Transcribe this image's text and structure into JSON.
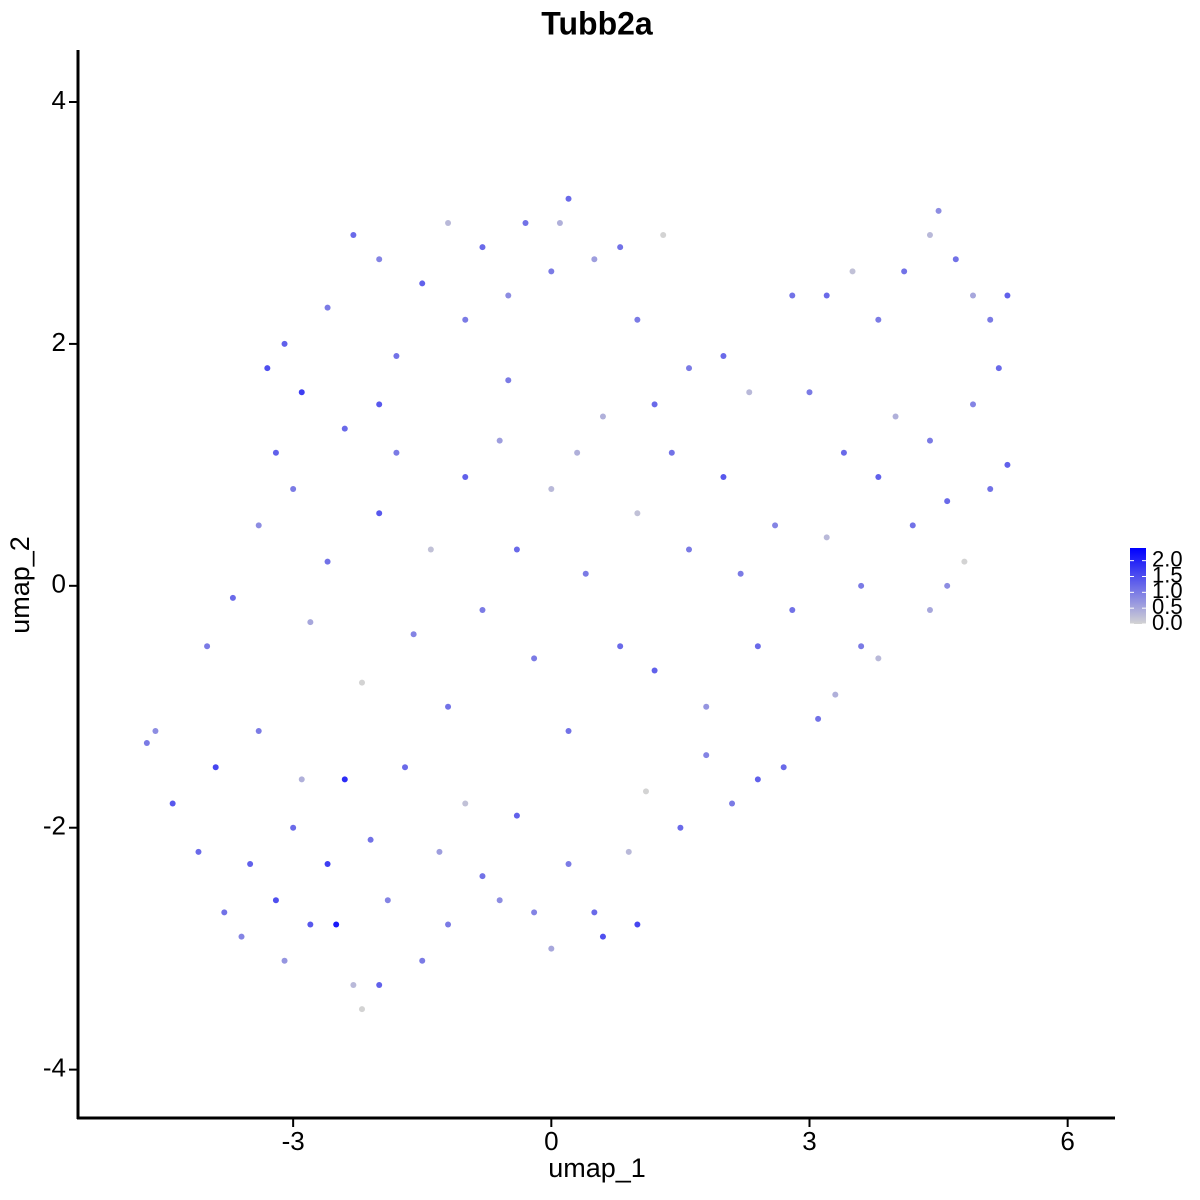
{
  "chart_data": {
    "type": "scatter",
    "title": "Tubb2a",
    "x_label": "umap_1",
    "y_label": "umap_2",
    "xlim": [
      -5.5,
      6.55
    ],
    "ylim": [
      -4.4,
      4.43
    ],
    "xticks": [
      -3,
      0,
      3,
      6
    ],
    "yticks": [
      -4,
      -2,
      0,
      2,
      4
    ],
    "colorbar": {
      "lim": [
        0,
        2.4
      ],
      "colors": [
        "#d3d3d3",
        "#0000ff"
      ],
      "ticks": [
        {
          "value": 0,
          "label": "0.0"
        },
        0.5,
        {
          "value": 1,
          "label": "1.0"
        },
        1.5,
        {
          "value": 2,
          "label": "2.0"
        }
      ]
    },
    "x": [
      -4.7,
      -4.6,
      -4.4,
      -4.1,
      -3.9,
      -3.8,
      -3.6,
      -3.5,
      -3.4,
      -3.2,
      -3.1,
      -3.0,
      -2.9,
      -2.8,
      -2.6,
      -2.5,
      -2.4,
      -2.3,
      -2.2,
      -2.1,
      -2.0,
      -1.9,
      -1.7,
      -1.5,
      -1.3,
      -1.2,
      -1.0,
      -0.8,
      -0.6,
      -0.4,
      -0.2,
      0.0,
      0.2,
      0.5,
      0.6,
      1.0,
      0.9,
      1.1,
      1.5,
      1.8,
      2.1,
      2.4,
      2.7,
      3.1,
      3.3,
      3.6,
      3.8,
      4.4,
      4.6,
      4.8,
      -4.0,
      -3.7,
      -3.4,
      -3.2,
      -3.0,
      -2.8,
      -2.6,
      -2.4,
      -2.2,
      -2.0,
      -1.8,
      -1.6,
      -1.4,
      -1.2,
      -1.0,
      -0.8,
      -0.6,
      -0.4,
      -0.2,
      0.0,
      0.2,
      0.4,
      0.6,
      0.8,
      1.0,
      1.2,
      1.4,
      1.6,
      1.8,
      2.0,
      2.2,
      2.4,
      2.6,
      2.8,
      3.0,
      3.2,
      3.4,
      3.6,
      3.8,
      4.0,
      4.2,
      4.4,
      4.6,
      4.9,
      5.1,
      5.3,
      -3.3,
      -3.1,
      -2.9,
      -2.6,
      -2.3,
      -2.0,
      -1.8,
      -1.5,
      -1.2,
      -1.0,
      -0.8,
      -0.5,
      -0.3,
      0.0,
      0.1,
      0.2,
      0.5,
      0.8,
      1.0,
      1.3,
      1.6,
      2.0,
      2.3,
      2.8,
      3.2,
      3.5,
      3.8,
      4.1,
      4.4,
      4.5,
      4.7,
      4.9,
      5.1,
      5.3,
      5.2,
      -2.0,
      -0.5,
      0.3,
      1.2
    ],
    "y": [
      -1.3,
      -1.2,
      -1.8,
      -2.2,
      -1.5,
      -2.7,
      -2.9,
      -2.3,
      -1.2,
      -2.6,
      -3.1,
      -2.0,
      -1.6,
      -2.8,
      -2.3,
      -2.8,
      -1.6,
      -3.3,
      -3.5,
      -2.1,
      -3.3,
      -2.6,
      -1.5,
      -3.1,
      -2.2,
      -2.8,
      -1.8,
      -2.4,
      -2.6,
      -1.9,
      -2.7,
      -3.0,
      -2.3,
      -2.7,
      -2.9,
      -2.8,
      -2.2,
      -1.7,
      -2.0,
      -1.4,
      -1.8,
      -1.6,
      -1.5,
      -1.1,
      -0.9,
      -0.5,
      -0.6,
      -0.2,
      0.0,
      0.2,
      -0.5,
      -0.1,
      0.5,
      1.1,
      0.8,
      -0.3,
      0.2,
      1.3,
      -0.8,
      0.6,
      1.1,
      -0.4,
      0.3,
      -1.0,
      0.9,
      -0.2,
      1.2,
      0.3,
      -0.6,
      0.8,
      -1.2,
      0.1,
      1.4,
      -0.5,
      0.6,
      -0.7,
      1.1,
      0.3,
      -1.0,
      0.9,
      0.1,
      -0.5,
      0.5,
      -0.2,
      1.6,
      0.4,
      1.1,
      0.0,
      0.9,
      1.4,
      0.5,
      1.2,
      0.7,
      1.5,
      0.8,
      1.0,
      1.8,
      2.0,
      1.6,
      2.3,
      2.9,
      2.7,
      1.9,
      2.5,
      3.0,
      2.2,
      2.8,
      2.4,
      3.0,
      2.6,
      3.0,
      3.2,
      2.7,
      2.8,
      2.2,
      2.9,
      1.8,
      1.9,
      1.6,
      2.4,
      2.4,
      2.6,
      2.2,
      2.6,
      2.9,
      3.1,
      2.7,
      2.4,
      2.2,
      2.4,
      1.8,
      1.5,
      1.7,
      1.1,
      1.5
    ],
    "values": [
      1.0,
      0.8,
      1.4,
      1.2,
      1.6,
      1.1,
      0.9,
      1.3,
      1.0,
      1.5,
      0.7,
      1.2,
      0.4,
      1.4,
      1.7,
      2.1,
      1.9,
      0.3,
      0.0,
      1.1,
      1.3,
      0.9,
      1.2,
      1.0,
      0.6,
      1.0,
      0.2,
      1.1,
      0.8,
      1.3,
      0.9,
      0.5,
      1.0,
      1.2,
      1.5,
      1.6,
      0.3,
      0.0,
      1.2,
      0.9,
      1.0,
      1.3,
      1.2,
      1.1,
      0.4,
      1.0,
      0.3,
      0.5,
      0.8,
      0.0,
      1.0,
      1.2,
      0.8,
      1.3,
      1.0,
      0.5,
      1.1,
      1.2,
      0.0,
      1.4,
      1.0,
      0.9,
      0.2,
      1.1,
      1.3,
      1.0,
      0.6,
      1.2,
      1.0,
      0.3,
      1.1,
      1.0,
      0.4,
      1.2,
      0.2,
      1.3,
      1.1,
      1.0,
      0.7,
      1.4,
      1.0,
      1.2,
      0.9,
      1.1,
      1.0,
      0.3,
      1.2,
      1.0,
      1.3,
      0.4,
      1.1,
      1.0,
      1.2,
      0.9,
      1.1,
      1.3,
      1.5,
      1.3,
      1.7,
      1.0,
      1.2,
      0.9,
      1.1,
      1.3,
      0.3,
      1.0,
      1.2,
      0.8,
      1.1,
      1.0,
      0.4,
      1.2,
      0.6,
      1.1,
      1.0,
      0.0,
      1.0,
      1.2,
      0.3,
      1.1,
      1.2,
      0.2,
      1.0,
      1.1,
      0.3,
      0.8,
      1.1,
      0.5,
      1.0,
      1.3,
      1.2,
      1.4,
      1.0,
      0.4,
      1.2
    ]
  }
}
